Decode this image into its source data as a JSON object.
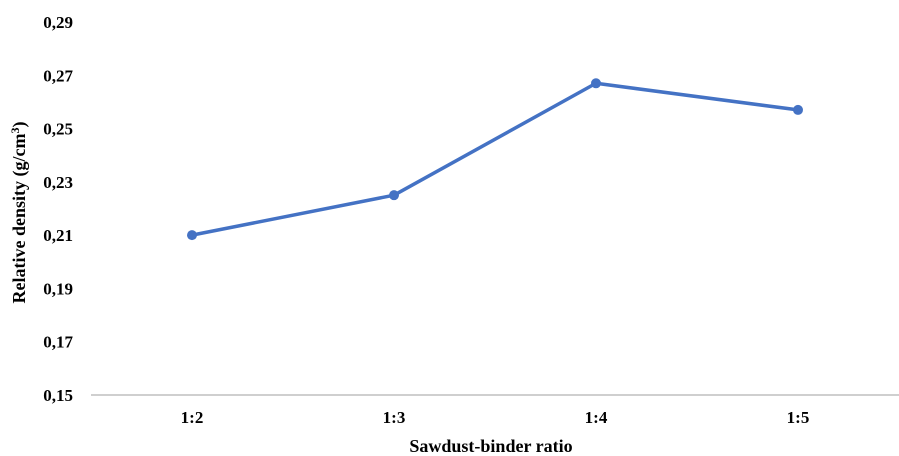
{
  "chart_data": {
    "type": "line",
    "title": "",
    "xlabel": "Sawdust-binder ratio",
    "ylabel": {
      "main": "Relative density (g/cm",
      "sup": "3",
      "close": ")"
    },
    "categories": [
      "1:2",
      "1:3",
      "1:4",
      "1:5"
    ],
    "series": [
      {
        "values": [
          0.21,
          0.225,
          0.267,
          0.257
        ],
        "color": "#4472C4"
      }
    ],
    "ylim": [
      0.15,
      0.29
    ],
    "yticks": [
      0.15,
      0.17,
      0.19,
      0.21,
      0.23,
      0.25,
      0.27,
      0.29
    ],
    "ytick_labels": [
      "0,15",
      "0,17",
      "0,19",
      "0,21",
      "0,23",
      "0,25",
      "0,27",
      "0,29"
    ],
    "grid": false,
    "legend": "none",
    "axis_color": "#bfbfbf"
  }
}
